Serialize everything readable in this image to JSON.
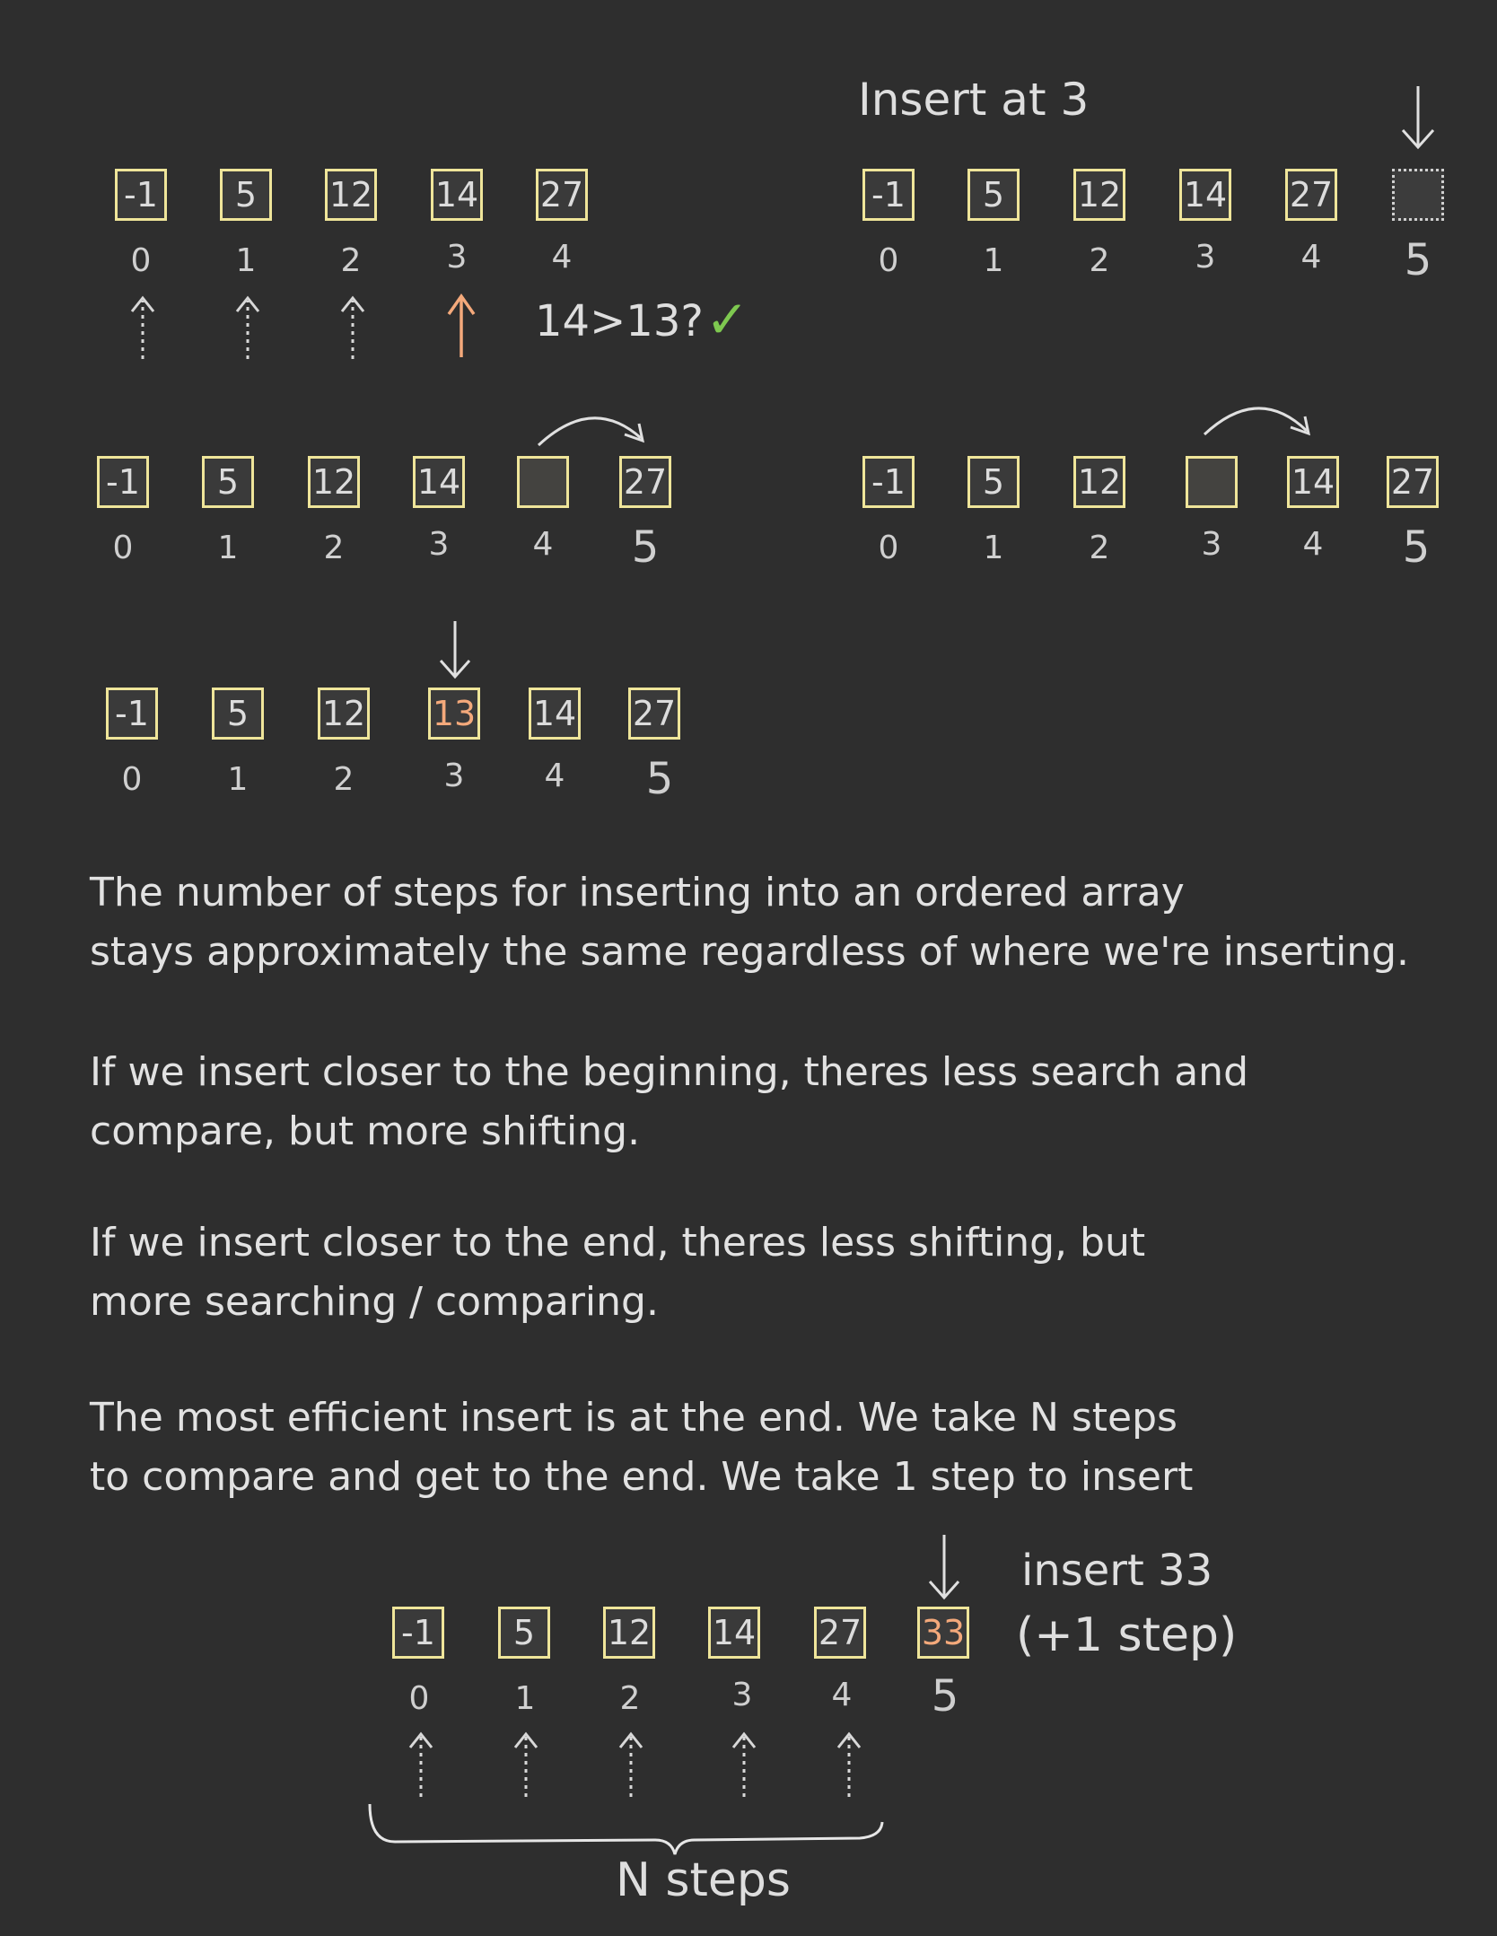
{
  "diagram1": {
    "cells": [
      "-1",
      "5",
      "12",
      "14",
      "27"
    ],
    "indices": [
      "0",
      "1",
      "2",
      "3",
      "4"
    ],
    "comparison": "14>13?",
    "check": "✓"
  },
  "diagram2": {
    "title": "Insert at 3",
    "cells": [
      "-1",
      "5",
      "12",
      "14",
      "27",
      ""
    ],
    "indices": [
      "0",
      "1",
      "2",
      "3",
      "4",
      "5"
    ]
  },
  "diagram3": {
    "cells": [
      "-1",
      "5",
      "12",
      "14",
      "",
      "27"
    ],
    "indices": [
      "0",
      "1",
      "2",
      "3",
      "4",
      "5"
    ]
  },
  "diagram4": {
    "cells": [
      "-1",
      "5",
      "12",
      "",
      "14",
      "27"
    ],
    "indices": [
      "0",
      "1",
      "2",
      "3",
      "4",
      "5"
    ]
  },
  "diagram5": {
    "cells": [
      "-1",
      "5",
      "12",
      "13",
      "14",
      "27"
    ],
    "indices": [
      "0",
      "1",
      "2",
      "3",
      "4",
      "5"
    ]
  },
  "paragraphs": [
    [
      "The number of steps for inserting into an ordered array",
      "stays approximately the same regardless of where we're inserting."
    ],
    [
      "If we insert closer to the beginning, theres less search and",
      "compare, but more shifting."
    ],
    [
      "If we insert closer to the end, theres less shifting, but",
      "more searching / comparing."
    ],
    [
      "The most efficient insert is at the end. We take N steps",
      "to compare and get to the end. We take 1 step to insert"
    ]
  ],
  "diagram6": {
    "cells": [
      "-1",
      "5",
      "12",
      "14",
      "27",
      "33"
    ],
    "indices": [
      "0",
      "1",
      "2",
      "3",
      "4",
      "5"
    ],
    "note_line1": "insert 33",
    "note_line2": "(+1 step)",
    "brace_label": "N steps"
  },
  "colors": {
    "background": "#2e2e2e",
    "cell_border": "#efe59a",
    "highlight": "#f4a97b",
    "check": "#7ec850"
  }
}
